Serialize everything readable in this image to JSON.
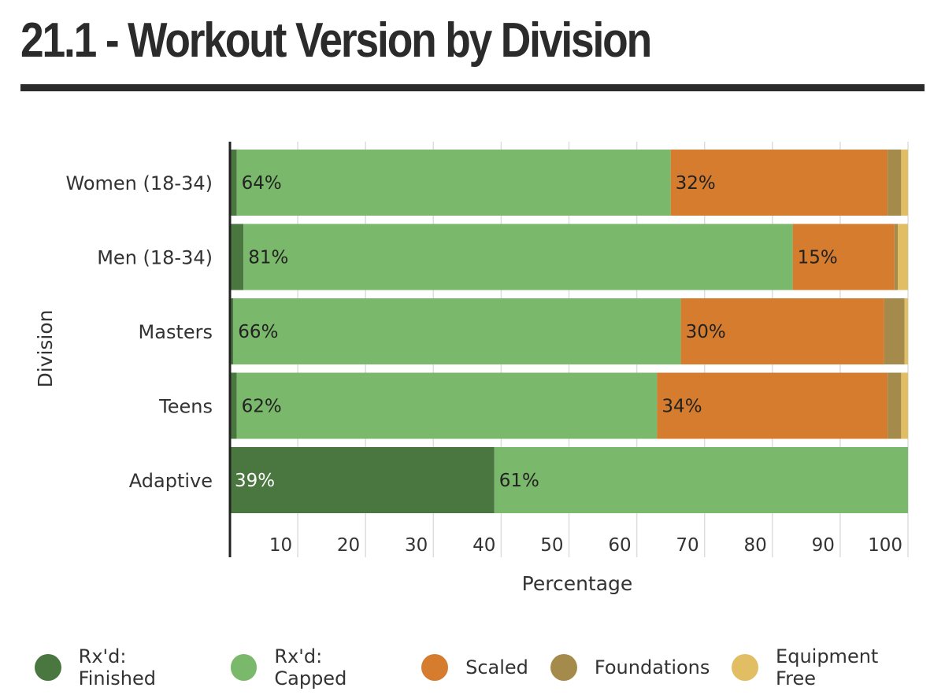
{
  "page": {
    "title": "21.1 - Workout Version by Division"
  },
  "colors": {
    "rx_finished": "#4a7640",
    "rx_capped": "#7ab86b",
    "scaled": "#d57c2e",
    "foundations": "#a48b4b",
    "equipment_free": "#e1bd64"
  },
  "chart_data": {
    "type": "bar",
    "orientation": "horizontal",
    "stacked": true,
    "ylabel": "Division",
    "xlabel": "Percentage",
    "xlim": [
      0,
      100
    ],
    "xticks": [
      10,
      20,
      30,
      40,
      50,
      60,
      70,
      80,
      90,
      100
    ],
    "grid": true,
    "legend_position": "bottom",
    "categories": [
      "Women (18-34)",
      "Men (18-34)",
      "Masters",
      "Teens",
      "Adaptive"
    ],
    "series": [
      {
        "name": "Rx'd: Finished",
        "color_key": "rx_finished",
        "values": [
          1,
          2,
          0.5,
          1,
          39
        ],
        "labels": [
          "",
          "",
          "",
          "",
          "39%"
        ]
      },
      {
        "name": "Rx'd: Capped",
        "color_key": "rx_capped",
        "values": [
          64,
          81,
          66,
          62,
          61
        ],
        "labels": [
          "64%",
          "81%",
          "66%",
          "62%",
          "61%"
        ]
      },
      {
        "name": "Scaled",
        "color_key": "scaled",
        "values": [
          32,
          15,
          30,
          34,
          0
        ],
        "labels": [
          "32%",
          "15%",
          "30%",
          "34%",
          ""
        ]
      },
      {
        "name": "Foundations",
        "color_key": "foundations",
        "values": [
          2,
          0.5,
          3,
          2,
          0
        ],
        "labels": [
          "",
          "",
          "",
          "",
          ""
        ]
      },
      {
        "name": "Equipment Free",
        "color_key": "equipment_free",
        "values": [
          1,
          1.5,
          0.5,
          1,
          0
        ],
        "labels": [
          "",
          "",
          "",
          "",
          ""
        ]
      }
    ]
  }
}
